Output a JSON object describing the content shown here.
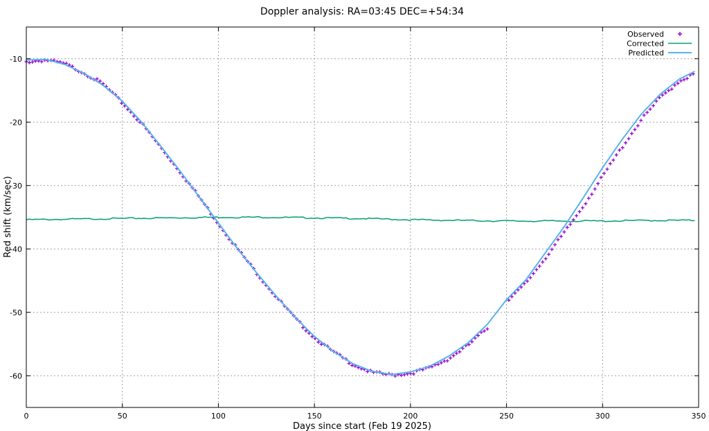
{
  "chart_data": {
    "type": "line",
    "title": "Doppler analysis: RA=03:45 DEC=+54:34",
    "xlabel": "Days since start (Feb 19 2025)",
    "ylabel": "Red shift (km/sec)",
    "xlim": [
      0,
      350
    ],
    "ylim": [
      -65,
      -5
    ],
    "xticks": [
      "0",
      "50",
      "100",
      "150",
      "200",
      "250",
      "300",
      "350"
    ],
    "yticks": [
      "-10",
      "-20",
      "-30",
      "-40",
      "-50",
      "-60"
    ],
    "grid": true,
    "legend_position": "top-right",
    "series": [
      {
        "name": "Observed",
        "style": "marker-plus",
        "color": "#9400d3",
        "gaps": [
          [
            240,
            251
          ]
        ],
        "x": [
          0,
          10,
          20,
          30,
          40,
          50,
          60,
          70,
          80,
          90,
          100,
          110,
          120,
          130,
          140,
          150,
          160,
          170,
          180,
          190,
          200,
          210,
          220,
          230,
          240,
          251,
          260,
          270,
          280,
          290,
          300,
          310,
          320,
          330,
          340,
          348
        ],
        "y": [
          -10.5,
          -10.2,
          -10.8,
          -12.2,
          -14.0,
          -17.0,
          -20.2,
          -24.0,
          -27.8,
          -31.8,
          -36.0,
          -40.0,
          -43.8,
          -47.5,
          -51.0,
          -54.0,
          -56.3,
          -58.2,
          -59.5,
          -59.9,
          -59.6,
          -58.8,
          -57.3,
          -55.2,
          -52.5,
          -48.2,
          -45.4,
          -41.5,
          -37.5,
          -33.2,
          -28.6,
          -24.0,
          -19.7,
          -16.2,
          -13.5,
          -12.4
        ]
      },
      {
        "name": "Corrected",
        "style": "line",
        "color": "#009e73",
        "x": [
          0,
          25,
          50,
          75,
          100,
          125,
          150,
          175,
          200,
          225,
          250,
          275,
          300,
          325,
          348
        ],
        "y": [
          -35.4,
          -35.3,
          -35.2,
          -35.1,
          -35.0,
          -35.0,
          -35.1,
          -35.2,
          -35.4,
          -35.5,
          -35.6,
          -35.6,
          -35.6,
          -35.5,
          -35.5
        ]
      },
      {
        "name": "Predicted",
        "style": "line",
        "color": "#56b4e9",
        "x": [
          0,
          10,
          20,
          30,
          40,
          50,
          60,
          70,
          80,
          90,
          100,
          110,
          120,
          130,
          140,
          150,
          160,
          170,
          180,
          190,
          200,
          210,
          220,
          230,
          240,
          250,
          260,
          270,
          280,
          290,
          300,
          310,
          320,
          330,
          340,
          348
        ],
        "y": [
          -10.2,
          -10.1,
          -10.9,
          -12.3,
          -14.2,
          -16.7,
          -20.0,
          -23.8,
          -27.7,
          -31.8,
          -35.9,
          -40.0,
          -43.8,
          -47.4,
          -50.8,
          -53.8,
          -56.2,
          -58.1,
          -59.3,
          -59.8,
          -59.4,
          -58.5,
          -56.9,
          -54.8,
          -51.9,
          -48.0,
          -44.9,
          -40.7,
          -36.5,
          -31.9,
          -27.2,
          -22.8,
          -18.8,
          -15.6,
          -13.2,
          -12.0
        ]
      }
    ]
  }
}
